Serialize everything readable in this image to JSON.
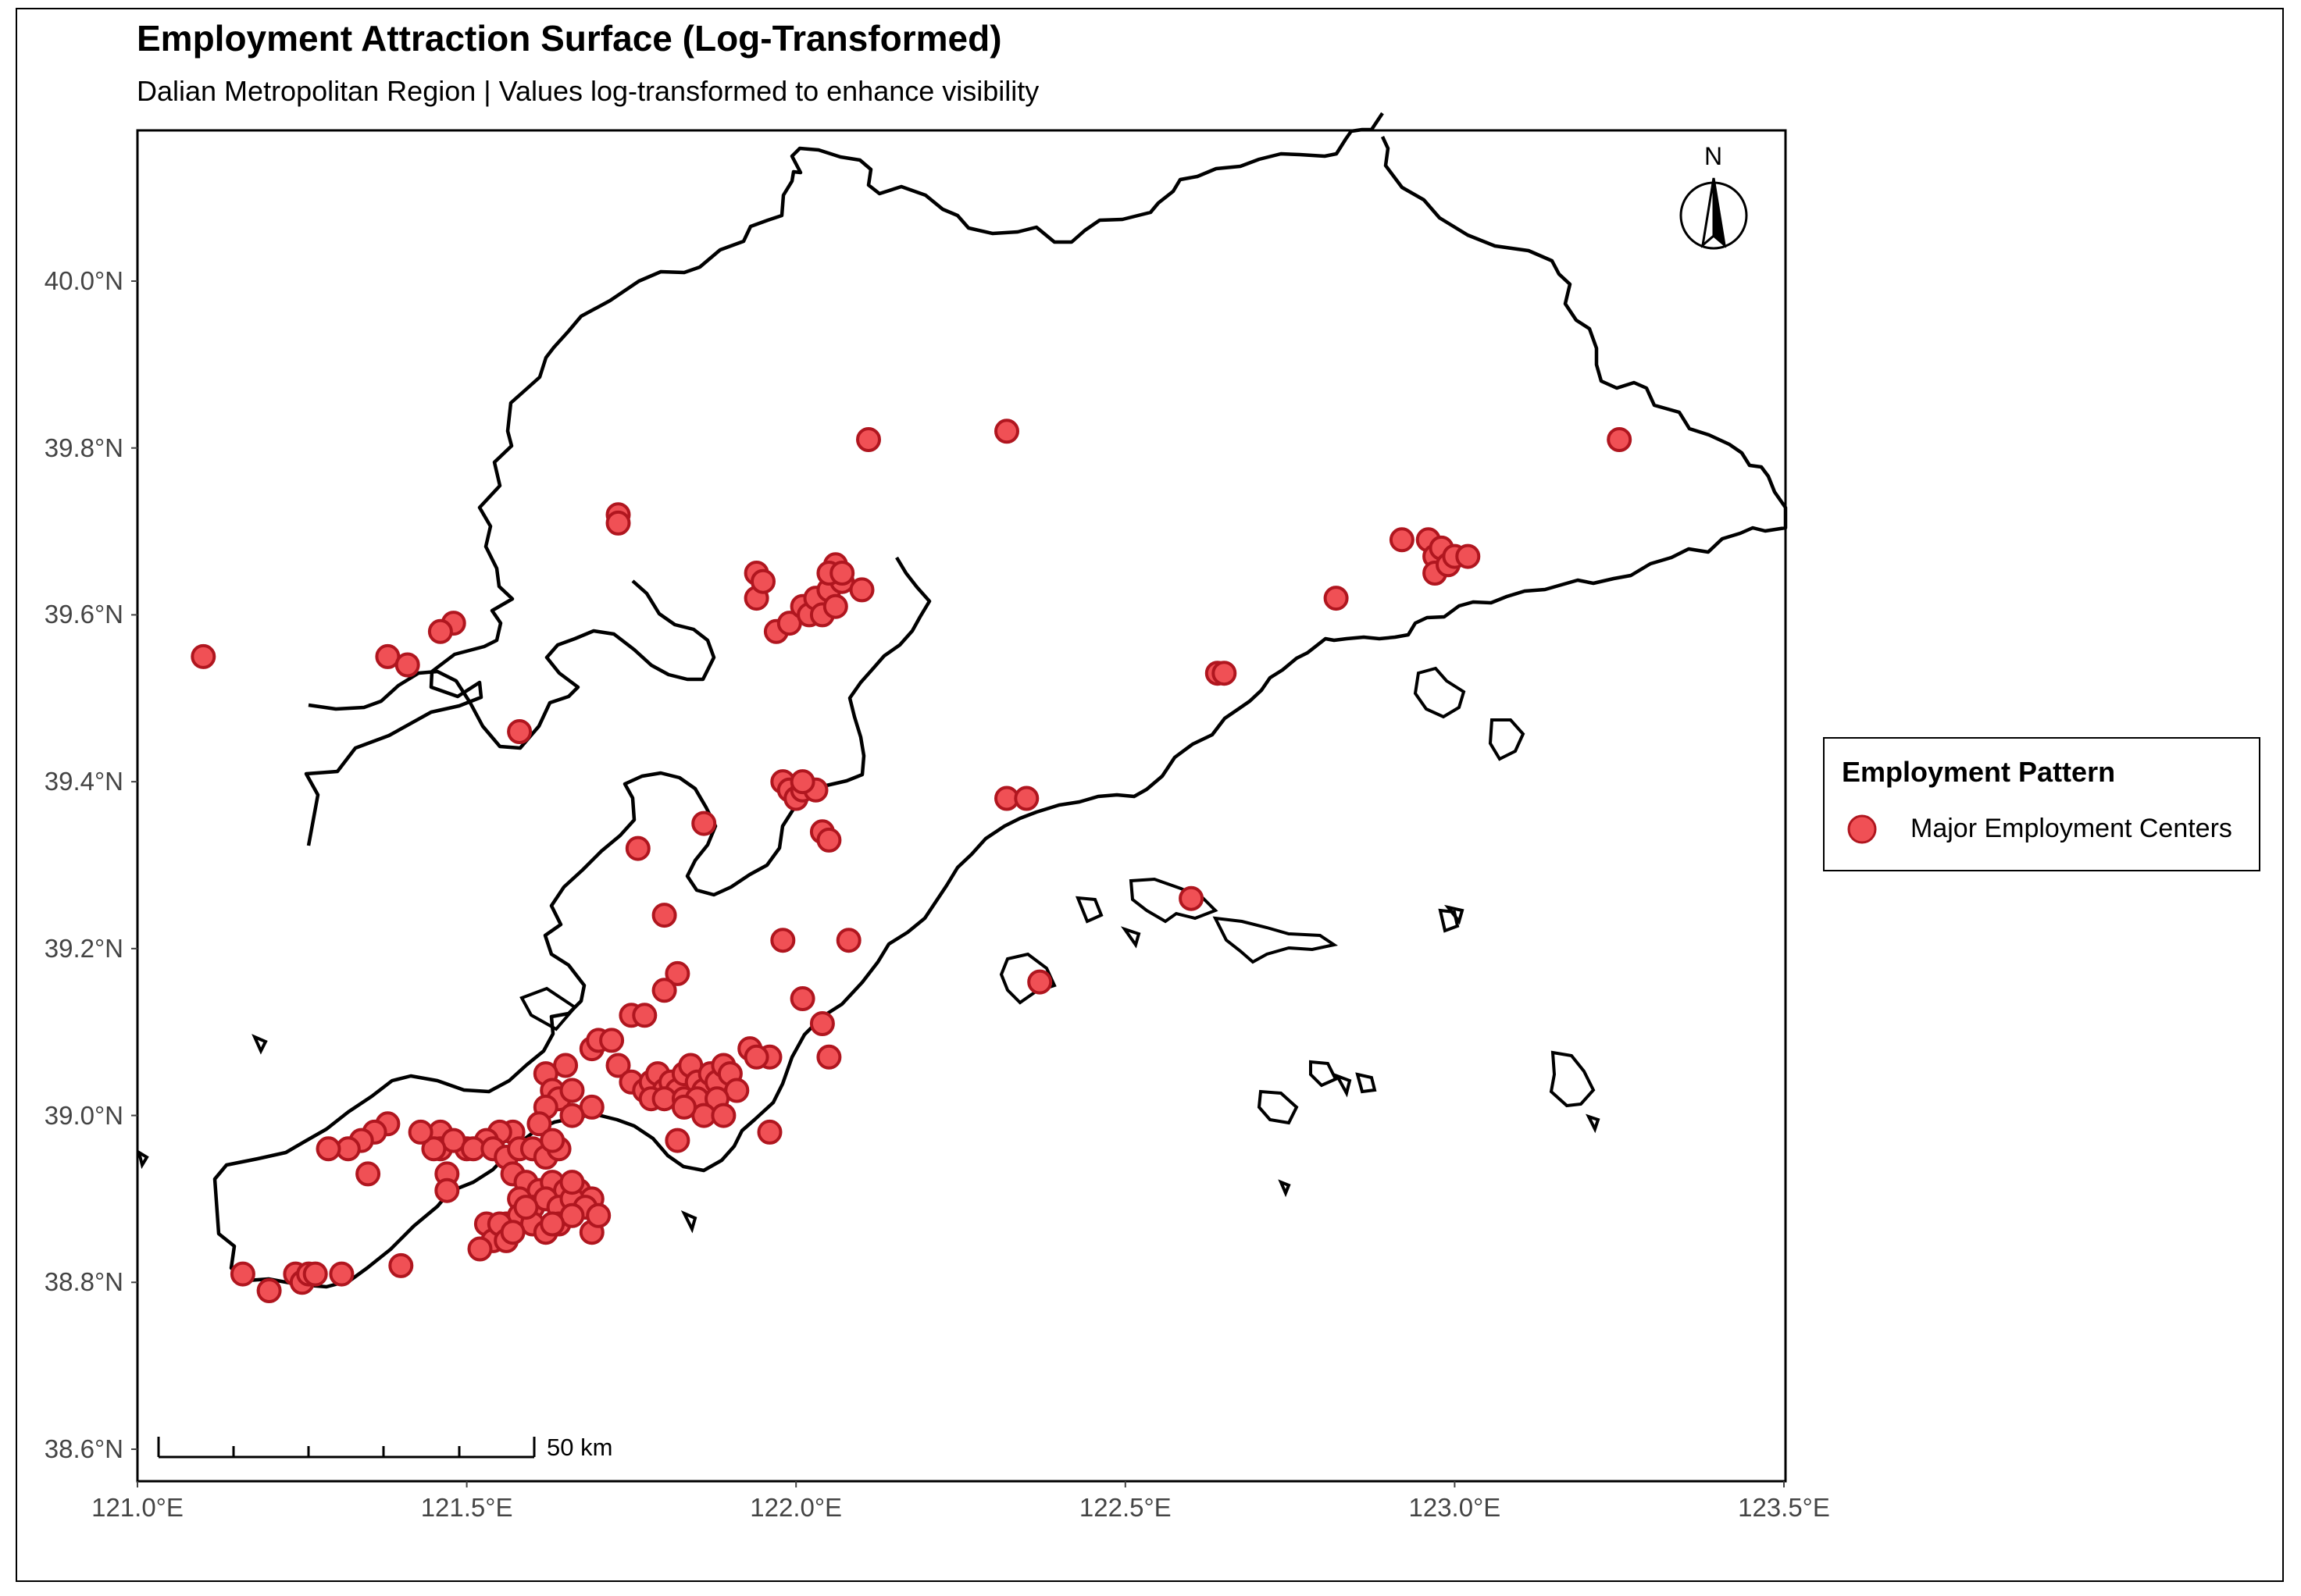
{
  "title": "Employment Attraction Surface (Log-Transformed)",
  "subtitle": "Dalian Metropolitan Region | Values log-transformed to enhance visibility",
  "legend": {
    "title": "Employment Pattern",
    "items": [
      {
        "label": "Major Employment Centers",
        "color": "#f05055",
        "stroke": "#b0161f"
      }
    ]
  },
  "map": {
    "lon_range": [
      121.0,
      123.5
    ],
    "lat_range": [
      38.6,
      40.2
    ],
    "x_ticks": [
      "121.0°E",
      "121.5°E",
      "122.0°E",
      "122.5°E",
      "123.0°E",
      "123.5°E"
    ],
    "y_ticks": [
      "38.6°N",
      "38.8°N",
      "39.0°N",
      "39.2°N",
      "39.4°N",
      "39.6°N",
      "39.8°N",
      "40.0°N"
    ],
    "north_arrow": "N",
    "scale_bar": "50 km",
    "point_color": "#f05055",
    "point_stroke": "#b0161f",
    "boundary_color": "#000000"
  },
  "chart_data": {
    "type": "scatter",
    "title": "Employment Attraction Surface (Log-Transformed)",
    "subtitle": "Dalian Metropolitan Region | Values log-transformed to enhance visibility",
    "xlim": [
      121.0,
      123.5
    ],
    "ylim": [
      38.6,
      40.2
    ],
    "series": [
      {
        "name": "Major Employment Centers",
        "points": [
          [
            122.11,
            39.81
          ],
          [
            122.32,
            39.82
          ],
          [
            123.25,
            39.81
          ],
          [
            121.73,
            39.72
          ],
          [
            121.73,
            39.71
          ],
          [
            121.1,
            39.55
          ],
          [
            121.38,
            39.55
          ],
          [
            121.41,
            39.54
          ],
          [
            121.48,
            39.59
          ],
          [
            121.46,
            39.58
          ],
          [
            121.58,
            39.46
          ],
          [
            121.94,
            39.65
          ],
          [
            121.94,
            39.62
          ],
          [
            121.95,
            39.64
          ],
          [
            121.97,
            39.58
          ],
          [
            121.99,
            39.59
          ],
          [
            122.01,
            39.61
          ],
          [
            122.02,
            39.6
          ],
          [
            122.03,
            39.62
          ],
          [
            122.04,
            39.6
          ],
          [
            122.05,
            39.63
          ],
          [
            122.06,
            39.66
          ],
          [
            122.07,
            39.64
          ],
          [
            122.06,
            39.61
          ],
          [
            122.05,
            39.65
          ],
          [
            122.07,
            39.65
          ],
          [
            122.1,
            39.63
          ],
          [
            122.92,
            39.69
          ],
          [
            122.96,
            39.69
          ],
          [
            122.97,
            39.67
          ],
          [
            122.97,
            39.65
          ],
          [
            122.98,
            39.68
          ],
          [
            122.99,
            39.66
          ],
          [
            123.0,
            39.67
          ],
          [
            123.02,
            39.67
          ],
          [
            122.82,
            39.62
          ],
          [
            122.64,
            39.53
          ],
          [
            122.65,
            39.53
          ],
          [
            121.98,
            39.4
          ],
          [
            121.99,
            39.39
          ],
          [
            122.0,
            39.38
          ],
          [
            122.01,
            39.39
          ],
          [
            122.03,
            39.39
          ],
          [
            122.01,
            39.4
          ],
          [
            122.04,
            39.34
          ],
          [
            122.05,
            39.33
          ],
          [
            122.32,
            39.38
          ],
          [
            122.35,
            39.38
          ],
          [
            121.76,
            39.32
          ],
          [
            121.86,
            39.35
          ],
          [
            121.8,
            39.24
          ],
          [
            121.98,
            39.21
          ],
          [
            122.08,
            39.21
          ],
          [
            122.6,
            39.26
          ],
          [
            122.37,
            39.16
          ],
          [
            121.82,
            39.17
          ],
          [
            121.8,
            39.15
          ],
          [
            122.01,
            39.14
          ],
          [
            121.75,
            39.12
          ],
          [
            121.77,
            39.12
          ],
          [
            122.04,
            39.11
          ],
          [
            122.05,
            39.07
          ],
          [
            121.93,
            39.08
          ],
          [
            121.96,
            39.07
          ],
          [
            121.94,
            39.07
          ],
          [
            121.69,
            39.08
          ],
          [
            121.7,
            39.09
          ],
          [
            121.72,
            39.09
          ],
          [
            121.73,
            39.06
          ],
          [
            121.75,
            39.04
          ],
          [
            121.77,
            39.03
          ],
          [
            121.78,
            39.04
          ],
          [
            121.79,
            39.05
          ],
          [
            121.8,
            39.03
          ],
          [
            121.81,
            39.04
          ],
          [
            121.82,
            39.03
          ],
          [
            121.83,
            39.05
          ],
          [
            121.84,
            39.06
          ],
          [
            121.85,
            39.04
          ],
          [
            121.86,
            39.03
          ],
          [
            121.87,
            39.05
          ],
          [
            121.88,
            39.04
          ],
          [
            121.89,
            39.06
          ],
          [
            121.9,
            39.05
          ],
          [
            121.91,
            39.03
          ],
          [
            121.78,
            39.02
          ],
          [
            121.8,
            39.02
          ],
          [
            121.83,
            39.02
          ],
          [
            121.85,
            39.02
          ],
          [
            121.88,
            39.02
          ],
          [
            121.86,
            39.0
          ],
          [
            121.89,
            39.0
          ],
          [
            121.83,
            39.01
          ],
          [
            121.96,
            38.98
          ],
          [
            121.82,
            38.97
          ],
          [
            121.65,
            39.06
          ],
          [
            121.62,
            39.05
          ],
          [
            121.63,
            39.03
          ],
          [
            121.64,
            39.02
          ],
          [
            121.66,
            39.03
          ],
          [
            121.69,
            39.01
          ],
          [
            121.66,
            39.0
          ],
          [
            121.62,
            39.01
          ],
          [
            121.61,
            38.99
          ],
          [
            121.57,
            38.98
          ],
          [
            121.55,
            38.98
          ],
          [
            121.53,
            38.97
          ],
          [
            121.5,
            38.96
          ],
          [
            121.46,
            38.98
          ],
          [
            121.46,
            38.96
          ],
          [
            121.48,
            38.97
          ],
          [
            121.51,
            38.96
          ],
          [
            121.54,
            38.96
          ],
          [
            121.56,
            38.95
          ],
          [
            121.58,
            38.96
          ],
          [
            121.6,
            38.96
          ],
          [
            121.62,
            38.95
          ],
          [
            121.64,
            38.96
          ],
          [
            121.57,
            38.93
          ],
          [
            121.59,
            38.92
          ],
          [
            121.61,
            38.91
          ],
          [
            121.63,
            38.92
          ],
          [
            121.65,
            38.91
          ],
          [
            121.67,
            38.91
          ],
          [
            121.69,
            38.9
          ],
          [
            121.58,
            38.9
          ],
          [
            121.6,
            38.89
          ],
          [
            121.62,
            38.9
          ],
          [
            121.64,
            38.89
          ],
          [
            121.66,
            38.9
          ],
          [
            121.68,
            38.89
          ],
          [
            121.56,
            38.87
          ],
          [
            121.58,
            38.88
          ],
          [
            121.6,
            38.87
          ],
          [
            121.62,
            38.86
          ],
          [
            121.64,
            38.87
          ],
          [
            121.66,
            38.88
          ],
          [
            121.69,
            38.86
          ],
          [
            121.53,
            38.87
          ],
          [
            121.54,
            38.85
          ],
          [
            121.52,
            38.84
          ],
          [
            121.55,
            38.87
          ],
          [
            121.56,
            38.85
          ],
          [
            121.57,
            38.86
          ],
          [
            121.59,
            38.89
          ],
          [
            121.47,
            38.93
          ],
          [
            121.47,
            38.91
          ],
          [
            121.45,
            38.96
          ],
          [
            121.43,
            38.98
          ],
          [
            121.38,
            38.99
          ],
          [
            121.36,
            38.98
          ],
          [
            121.34,
            38.97
          ],
          [
            121.32,
            38.96
          ],
          [
            121.29,
            38.96
          ],
          [
            121.35,
            38.93
          ],
          [
            121.16,
            38.81
          ],
          [
            121.2,
            38.79
          ],
          [
            121.24,
            38.81
          ],
          [
            121.25,
            38.8
          ],
          [
            121.26,
            38.81
          ],
          [
            121.27,
            38.81
          ],
          [
            121.31,
            38.81
          ],
          [
            121.4,
            38.82
          ],
          [
            121.63,
            38.87
          ],
          [
            121.7,
            38.88
          ],
          [
            121.66,
            38.92
          ],
          [
            121.63,
            38.97
          ]
        ]
      }
    ]
  }
}
